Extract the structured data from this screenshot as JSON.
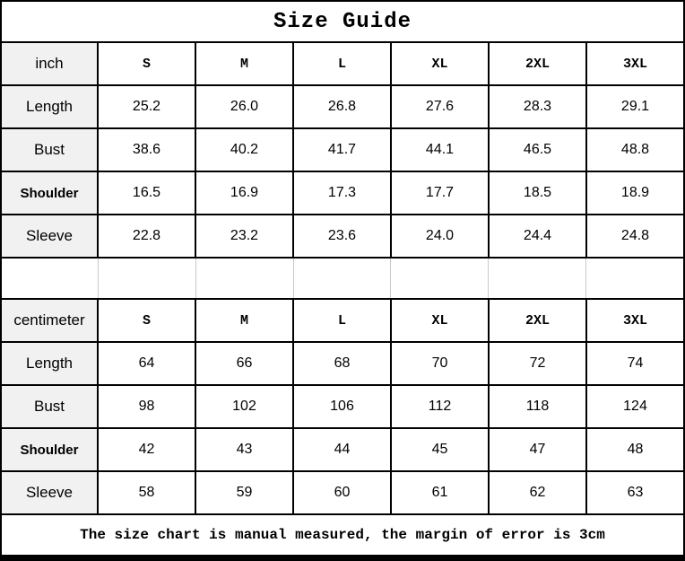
{
  "title": "Size Guide",
  "footer": "The size chart is manual measured, the margin of error is 3cm",
  "colors": {
    "border": "#000000",
    "label_background": "#f1f1f1",
    "faint_gridline": "#c9c9c9",
    "text": "#000000"
  },
  "sections": [
    {
      "unit": "inch",
      "sizes": [
        "S",
        "M",
        "L",
        "XL",
        "2XL",
        "3XL"
      ],
      "rows": [
        {
          "label": "Length",
          "values": [
            "25.2",
            "26.0",
            "26.8",
            "27.6",
            "28.3",
            "29.1"
          ]
        },
        {
          "label": "Bust",
          "values": [
            "38.6",
            "40.2",
            "41.7",
            "44.1",
            "46.5",
            "48.8"
          ]
        },
        {
          "label": "Shoulder",
          "values": [
            "16.5",
            "16.9",
            "17.3",
            "17.7",
            "18.5",
            "18.9"
          ]
        },
        {
          "label": "Sleeve",
          "values": [
            "22.8",
            "23.2",
            "23.6",
            "24.0",
            "24.4",
            "24.8"
          ]
        }
      ]
    },
    {
      "unit": "centimeter",
      "sizes": [
        "S",
        "M",
        "L",
        "XL",
        "2XL",
        "3XL"
      ],
      "rows": [
        {
          "label": "Length",
          "values": [
            "64",
            "66",
            "68",
            "70",
            "72",
            "74"
          ]
        },
        {
          "label": "Bust",
          "values": [
            "98",
            "102",
            "106",
            "112",
            "118",
            "124"
          ]
        },
        {
          "label": "Shoulder",
          "values": [
            "42",
            "43",
            "44",
            "45",
            "47",
            "48"
          ]
        },
        {
          "label": "Sleeve",
          "values": [
            "58",
            "59",
            "60",
            "61",
            "62",
            "63"
          ]
        }
      ]
    }
  ]
}
